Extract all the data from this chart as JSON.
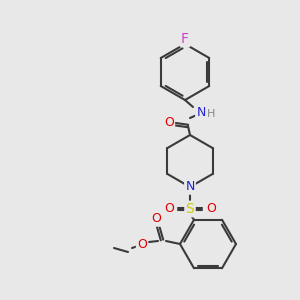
{
  "bg_color": "#e8e8e8",
  "bond_color": "#3a3a3a",
  "bond_width": 1.5,
  "atom_colors": {
    "F": "#cc44cc",
    "N": "#2222cc",
    "O": "#dd0000",
    "S": "#cccc00",
    "H": "#888888",
    "C": "#3a3a3a"
  },
  "font_size": 9
}
